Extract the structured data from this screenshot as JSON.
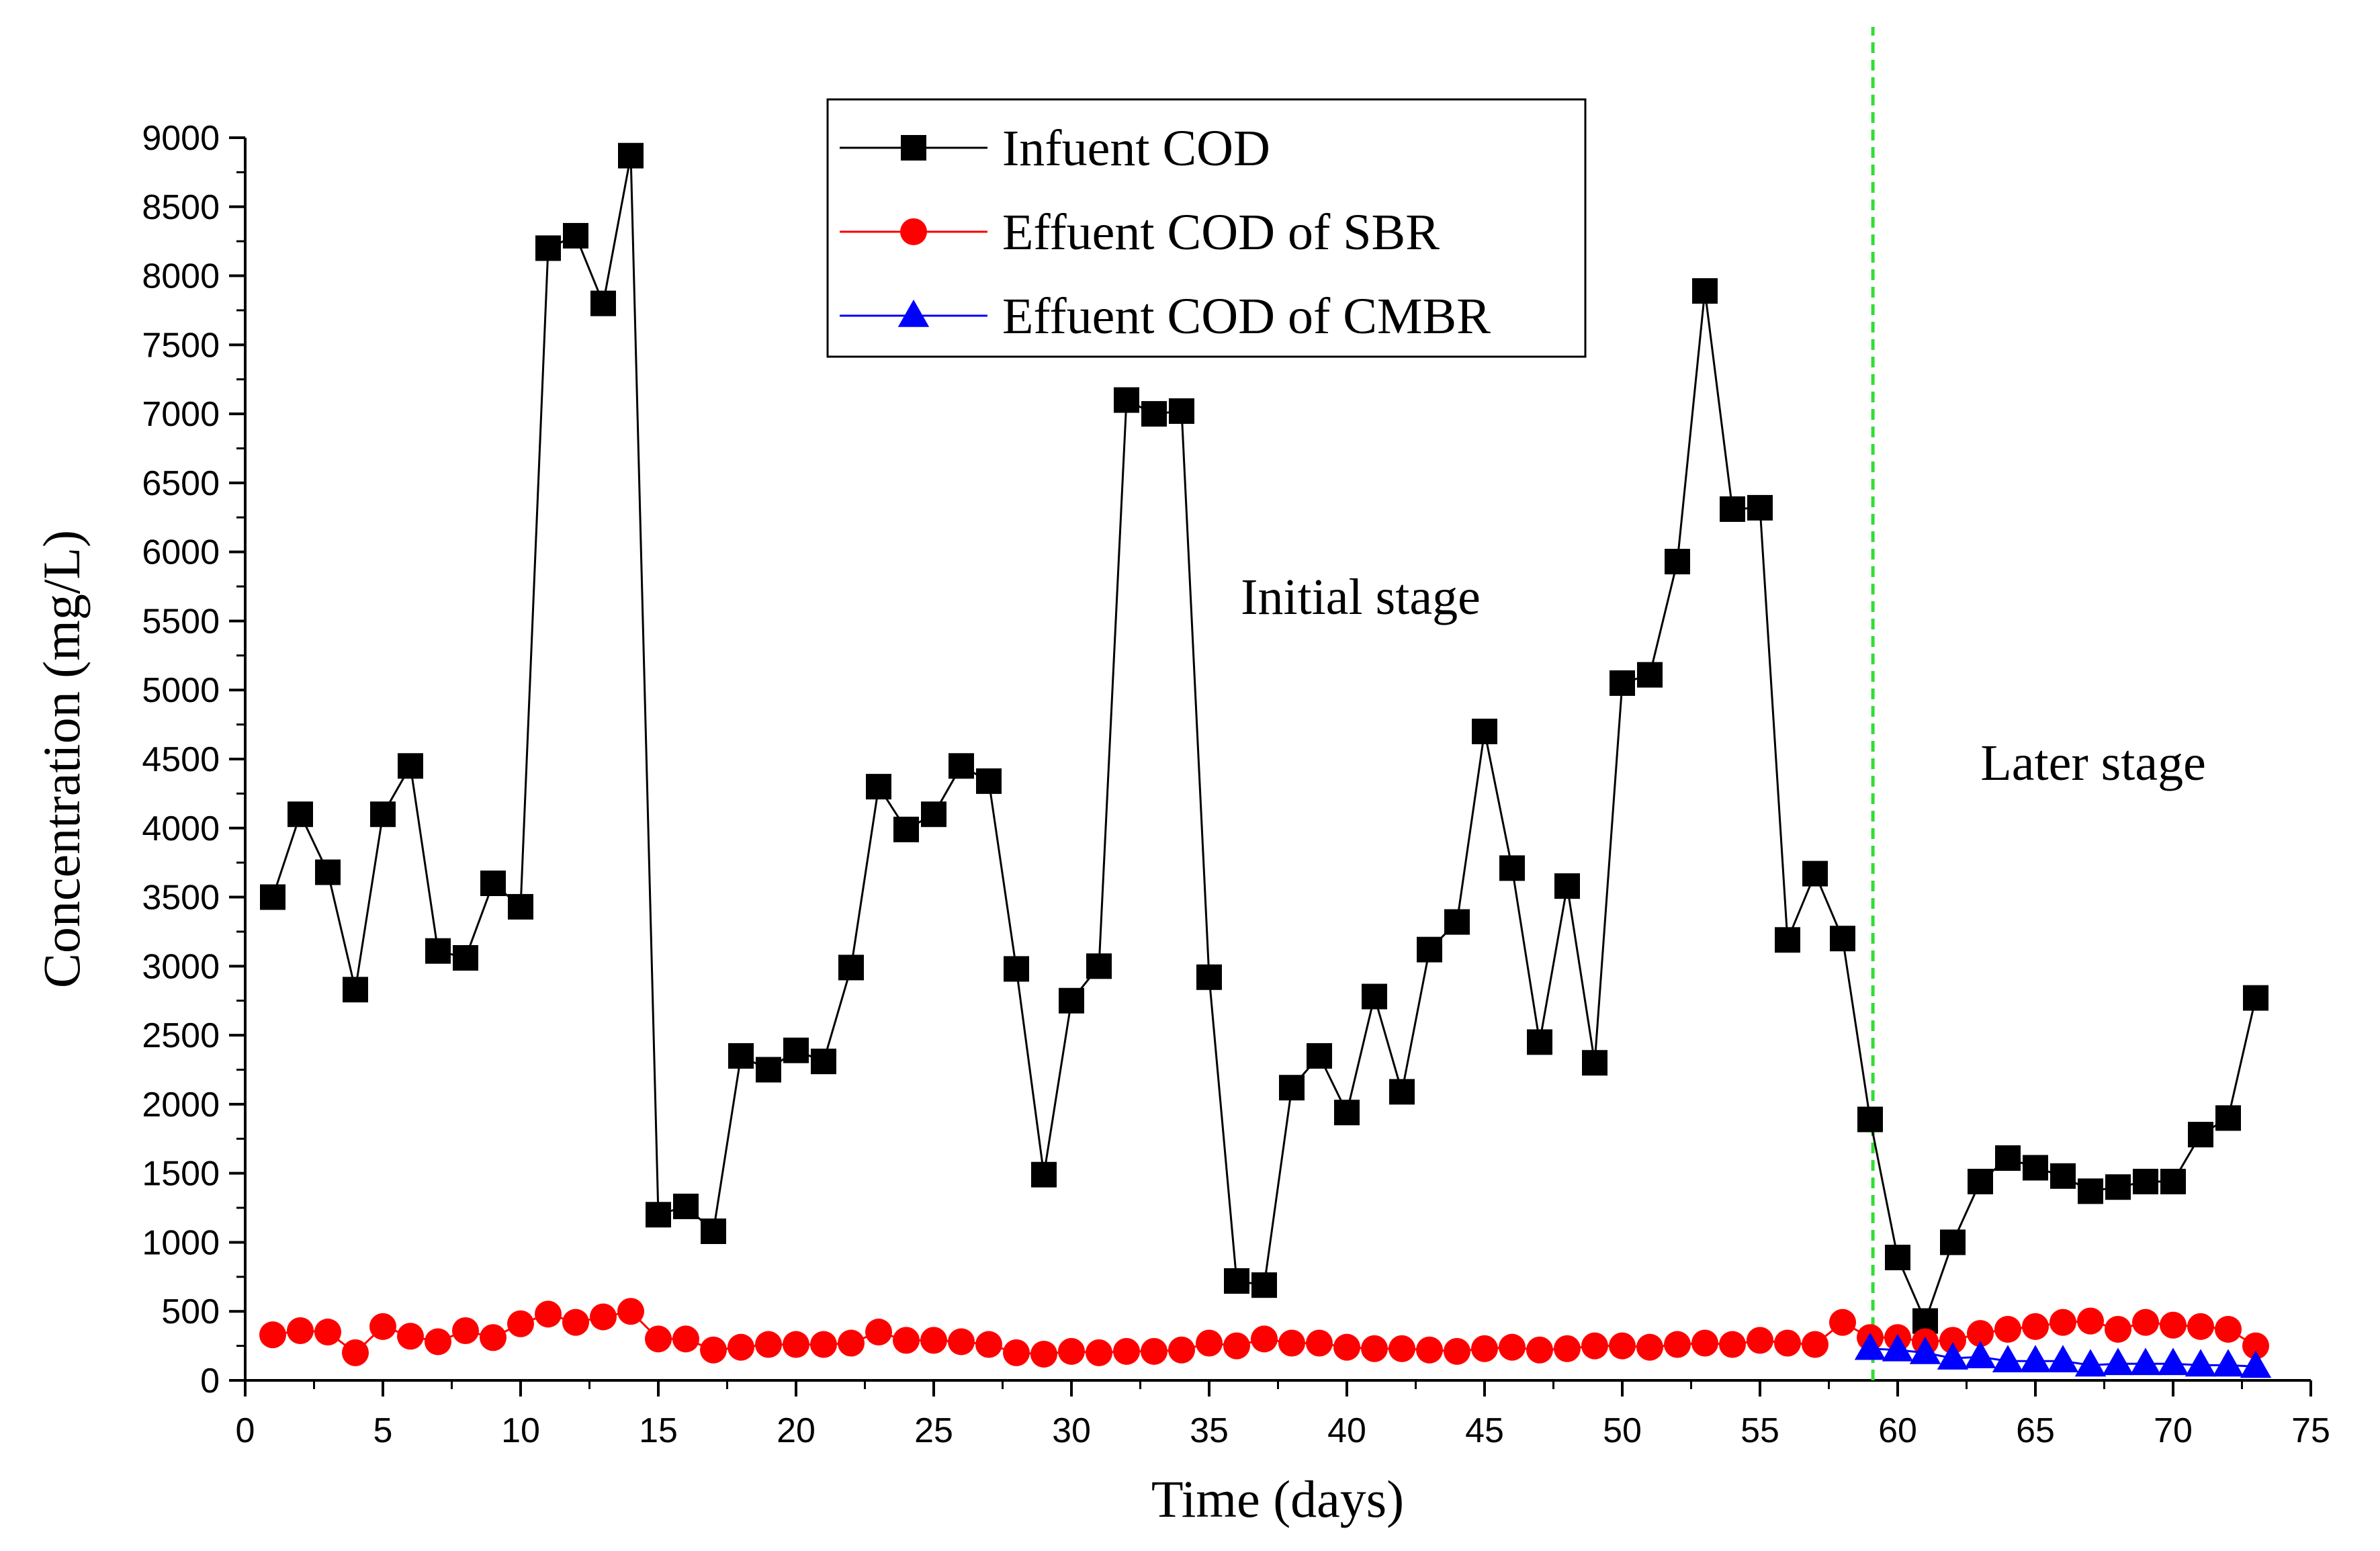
{
  "chart_data": {
    "type": "line",
    "title": "",
    "xlabel": "Time (days)",
    "ylabel": "Concentration (mg/L)",
    "xlim": [
      0,
      75
    ],
    "ylim": [
      0,
      9000
    ],
    "xticks": [
      0,
      5,
      10,
      15,
      20,
      25,
      30,
      35,
      40,
      45,
      50,
      55,
      60,
      65,
      70,
      75
    ],
    "yticks": [
      0,
      500,
      1000,
      1500,
      2000,
      2500,
      3000,
      3500,
      4000,
      4500,
      5000,
      5500,
      6000,
      6500,
      7000,
      7500,
      8000,
      8500,
      9000
    ],
    "grid": false,
    "legend_position": "top-center",
    "series": [
      {
        "name": "Infuent COD",
        "color": "#000000",
        "marker": "square",
        "x": [
          1,
          2,
          3,
          4,
          5,
          6,
          7,
          8,
          9,
          10,
          11,
          12,
          13,
          14,
          15,
          16,
          17,
          18,
          19,
          20,
          21,
          22,
          23,
          24,
          25,
          26,
          27,
          28,
          29,
          30,
          31,
          32,
          33,
          34,
          35,
          36,
          37,
          38,
          39,
          40,
          41,
          42,
          43,
          44,
          45,
          46,
          47,
          48,
          49,
          50,
          51,
          52,
          53,
          54,
          55,
          56,
          57,
          58,
          59,
          60,
          61,
          62,
          63,
          64,
          65,
          66,
          67,
          68,
          69,
          70,
          71,
          72,
          73
        ],
        "y": [
          3500,
          4100,
          3680,
          2830,
          4100,
          4450,
          3110,
          3060,
          3600,
          3430,
          8200,
          8290,
          7800,
          8870,
          1200,
          1260,
          1080,
          2350,
          2250,
          2390,
          2310,
          2990,
          4300,
          3990,
          4100,
          4450,
          4340,
          2980,
          1490,
          2750,
          3000,
          7100,
          7000,
          7020,
          2920,
          720,
          690,
          2120,
          2350,
          1940,
          2780,
          2090,
          3120,
          3320,
          4700,
          3710,
          2450,
          3580,
          2300,
          5050,
          5110,
          5930,
          7890,
          6310,
          6320,
          3190,
          3670,
          3200,
          1890,
          890,
          430,
          1000,
          1440,
          1610,
          1540,
          1480,
          1370,
          1400,
          1440,
          1440,
          1780,
          1900,
          2770
        ]
      },
      {
        "name": "Effuent COD of SBR",
        "color": "#ff0000",
        "marker": "circle",
        "x": [
          1,
          2,
          3,
          4,
          5,
          6,
          7,
          8,
          9,
          10,
          11,
          12,
          13,
          14,
          15,
          16,
          17,
          18,
          19,
          20,
          21,
          22,
          23,
          24,
          25,
          26,
          27,
          28,
          29,
          30,
          31,
          32,
          33,
          34,
          35,
          36,
          37,
          38,
          39,
          40,
          41,
          42,
          43,
          44,
          45,
          46,
          47,
          48,
          49,
          50,
          51,
          52,
          53,
          54,
          55,
          56,
          57,
          58,
          59,
          60,
          61,
          62,
          63,
          64,
          65,
          66,
          67,
          68,
          69,
          70,
          71,
          72,
          73
        ],
        "y": [
          330,
          360,
          350,
          200,
          390,
          320,
          280,
          360,
          310,
          410,
          480,
          420,
          460,
          500,
          300,
          300,
          220,
          240,
          260,
          260,
          260,
          270,
          350,
          290,
          290,
          280,
          260,
          200,
          190,
          210,
          200,
          210,
          210,
          220,
          270,
          250,
          300,
          270,
          270,
          240,
          230,
          230,
          220,
          210,
          230,
          240,
          220,
          230,
          250,
          250,
          240,
          260,
          270,
          260,
          290,
          270,
          260,
          420,
          310,
          310,
          280,
          290,
          340,
          370,
          390,
          420,
          430,
          370,
          420,
          400,
          390,
          370,
          250
        ]
      },
      {
        "name": "Effuent COD of CMBR",
        "color": "#0000ff",
        "marker": "triangle",
        "x": [
          59,
          60,
          61,
          62,
          63,
          64,
          65,
          66,
          67,
          68,
          69,
          70,
          71,
          72,
          73
        ],
        "y": [
          230,
          220,
          200,
          160,
          170,
          140,
          140,
          140,
          110,
          120,
          120,
          120,
          110,
          110,
          100
        ]
      }
    ],
    "annotations": [
      {
        "text": "Initial stage",
        "x": 40.5,
        "y": 5550
      },
      {
        "text": "Later stage",
        "x": 67.1,
        "y": 4350
      }
    ],
    "vline": {
      "x": 59.1,
      "color": "#33dd33",
      "style": "dashed"
    }
  }
}
